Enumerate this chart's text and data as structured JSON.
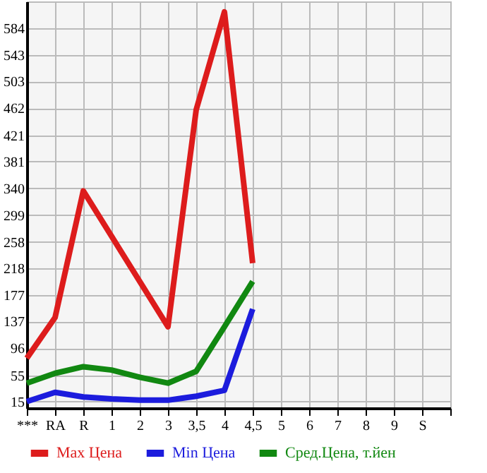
{
  "chart_data": {
    "type": "line",
    "categories": [
      "***",
      "RA",
      "R",
      "1",
      "2",
      "3",
      "3,5",
      "4",
      "4,5",
      "5",
      "6",
      "7",
      "8",
      "9",
      "S",
      null
    ],
    "series": [
      {
        "name": "Max Цена",
        "color": "#dd1c1c",
        "values": [
          81,
          143,
          336,
          null,
          null,
          129,
          460,
          609,
          226,
          null,
          null,
          null,
          null,
          null,
          null,
          null
        ]
      },
      {
        "name": "Min Цена",
        "color": "#1c1cdd",
        "values": [
          15,
          29,
          22,
          19,
          17,
          17,
          23,
          32,
          156,
          null,
          null,
          null,
          null,
          null,
          null,
          null
        ]
      },
      {
        "name": "Сред.Цена, т.йен",
        "color": "#118811",
        "values": [
          43,
          58,
          68,
          63,
          52,
          43,
          61,
          129,
          198,
          null,
          null,
          null,
          null,
          null,
          null,
          null
        ]
      }
    ],
    "ylim": [
      5,
      625
    ],
    "yticks": [
      15,
      55,
      96,
      137,
      177,
      218,
      258,
      299,
      340,
      381,
      421,
      462,
      503,
      543,
      584
    ],
    "grid": true,
    "legend": "bottom",
    "marker": "none",
    "line_style": "solid"
  }
}
